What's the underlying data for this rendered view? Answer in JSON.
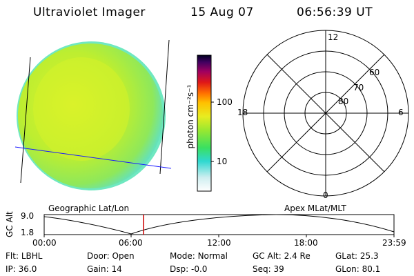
{
  "header": {
    "title": "Ultraviolet Imager",
    "date": "15 Aug 07",
    "time": "06:56:39 UT"
  },
  "colorbar": {
    "unit_label": "photon cm⁻²s⁻¹",
    "ticks": [
      "100",
      "10"
    ]
  },
  "polar_plot": {
    "mlt_labels": [
      "12",
      "18",
      "6",
      "0"
    ],
    "lat_labels": [
      "60",
      "70",
      "80"
    ]
  },
  "panel_titles": {
    "left": "Geographic Lat/Lon",
    "right": "Apex MLat/MLT"
  },
  "altitude_plot": {
    "y_label": "GC Alt",
    "y_ticks": [
      "9.0",
      "1.8"
    ],
    "x_ticks": [
      "00:00",
      "06:00",
      "12:00",
      "18:00",
      "23:59"
    ]
  },
  "status": {
    "row1": [
      {
        "label": "Flt:",
        "value": "LBHL"
      },
      {
        "label": "Door:",
        "value": "Open"
      },
      {
        "label": "Mode:",
        "value": "Normal"
      },
      {
        "label": "GC Alt:",
        "value": "2.4 Re"
      },
      {
        "label": "GLat:",
        "value": "25.3"
      }
    ],
    "row2": [
      {
        "label": "IP:",
        "value": "36.0"
      },
      {
        "label": "Gain:",
        "value": "14"
      },
      {
        "label": "Dsp:",
        "value": "-0.0"
      },
      {
        "label": "Seq:",
        "value": "39"
      },
      {
        "label": "GLon:",
        "value": "80.1"
      }
    ]
  },
  "colors": {
    "disk_main": "#c8ee2a",
    "disk_edge": "#6fe8b8",
    "geo_line": "#1a1aff",
    "marker": "#cc0000"
  }
}
